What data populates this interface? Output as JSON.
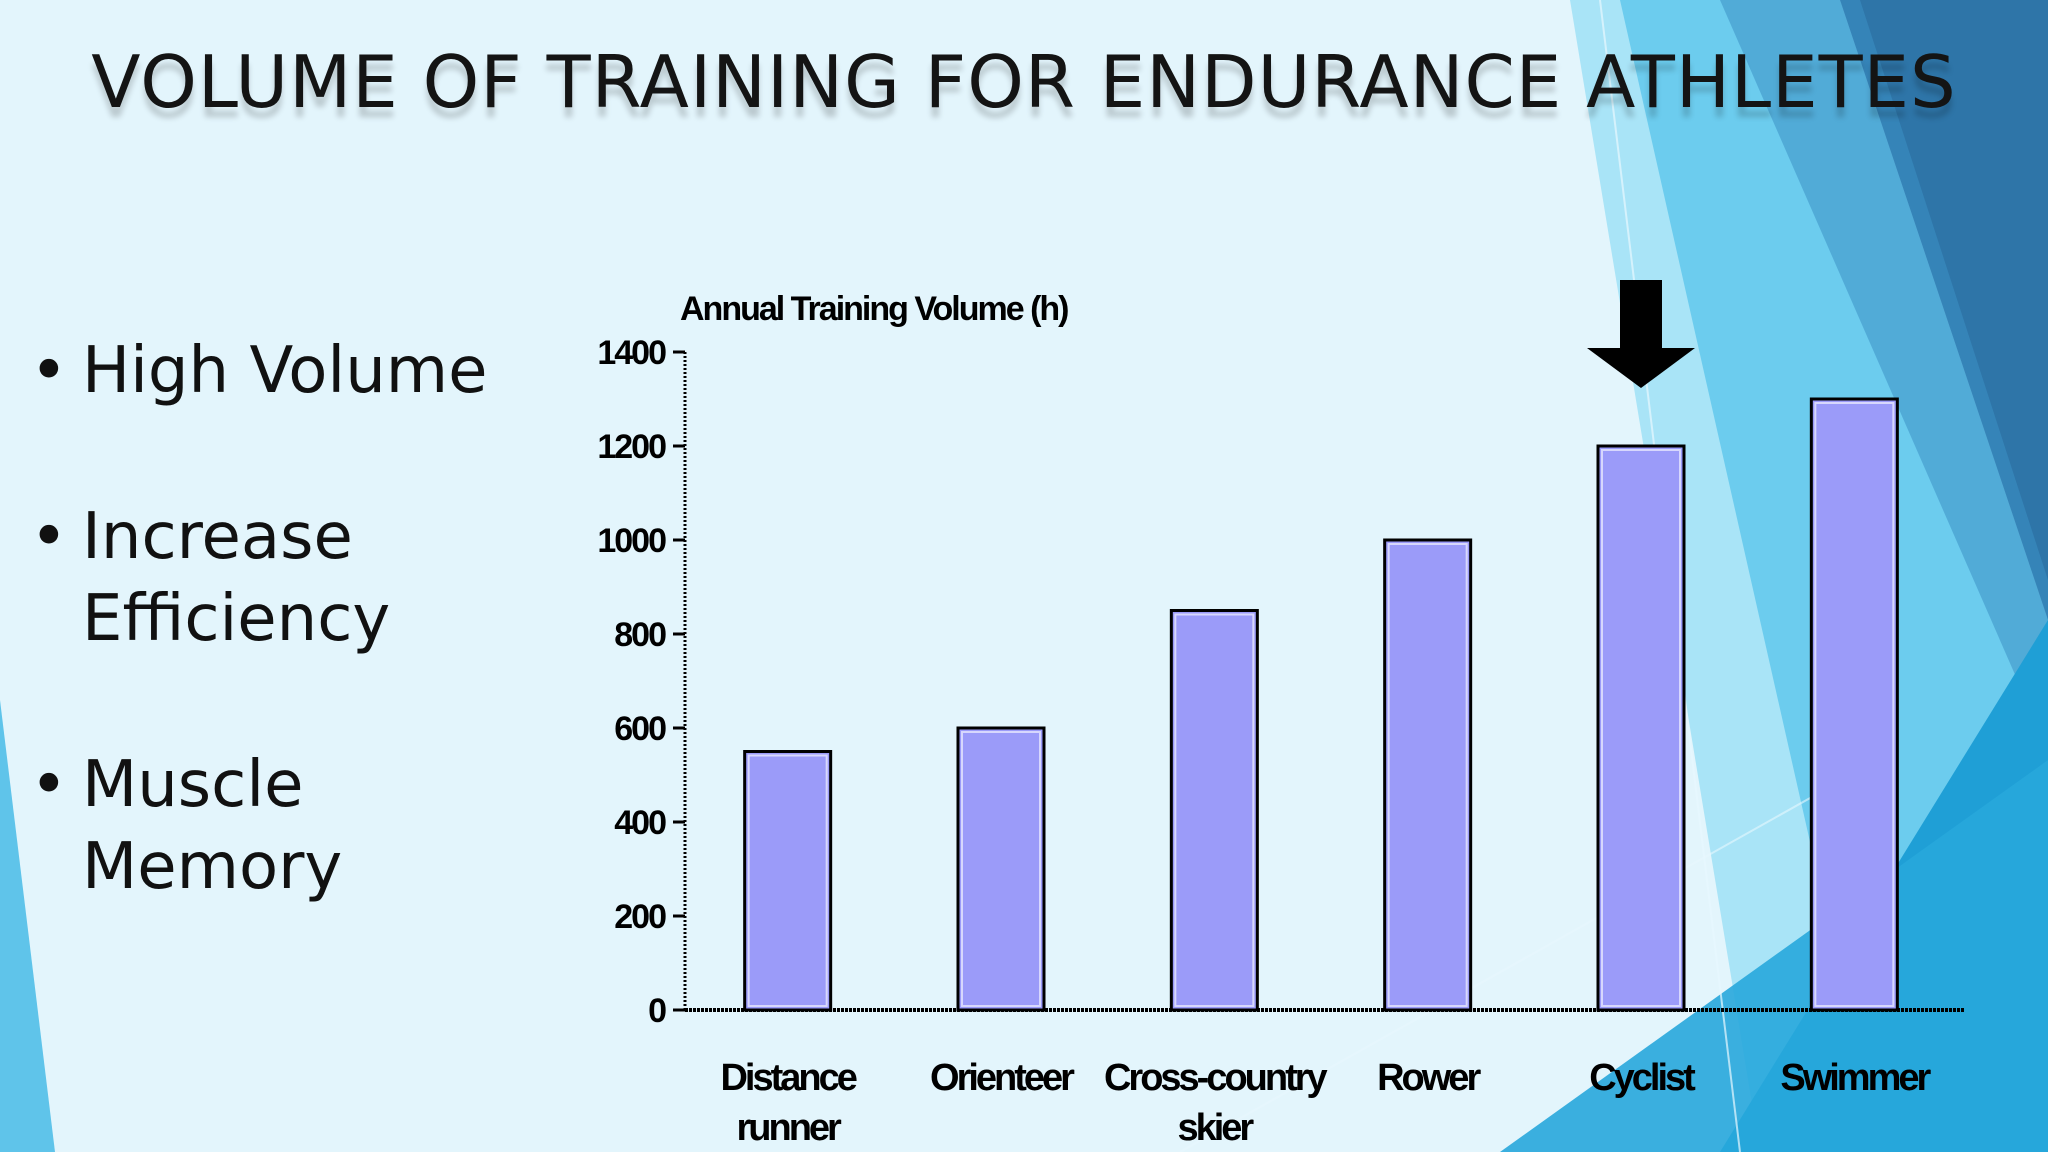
{
  "slide": {
    "title": "VOLUME OF TRAINING FOR ENDURANCE ATHLETES",
    "bullets": [
      "High Volume",
      "Increase Efficiency",
      "Muscle Memory"
    ],
    "bullet_glyph": "•"
  },
  "theme": {
    "background": "#e3f5fc",
    "accent_light": "#8fd8f2",
    "accent_mid": "#3cb0e0",
    "accent_dark": "#2a6b9c",
    "bar_fill": "#9b9bf9",
    "arrow_color": "#000000"
  },
  "chart_data": {
    "type": "bar",
    "ylabel": "Annual Training Volume (h)",
    "categories": [
      "Distance runner",
      "Orienteer",
      "Cross-country skier",
      "Rower",
      "Cyclist",
      "Swimmer"
    ],
    "values": [
      550,
      600,
      850,
      1000,
      1200,
      1300
    ],
    "ylim": [
      0,
      1400
    ],
    "yticks": [
      0,
      200,
      400,
      600,
      800,
      1000,
      1200,
      1400
    ],
    "grid": false,
    "highlight": {
      "category": "Cyclist",
      "marker": "down-arrow"
    }
  }
}
